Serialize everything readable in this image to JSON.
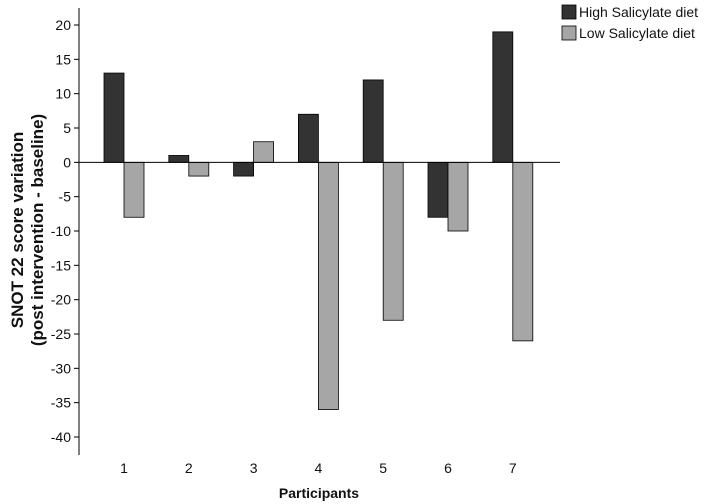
{
  "chart_data": {
    "type": "bar",
    "categories": [
      "1",
      "2",
      "3",
      "4",
      "5",
      "6",
      "7"
    ],
    "series": [
      {
        "name": "High Salicylate diet",
        "color": "#333333",
        "values": [
          13,
          1,
          -2,
          7,
          12,
          -8,
          19
        ]
      },
      {
        "name": "Low Salicylate diet",
        "color": "#a6a6a6",
        "values": [
          -8,
          -2,
          3,
          -36,
          -23,
          -10,
          -26
        ]
      }
    ],
    "xlabel": "Participants",
    "ylabel_lines": [
      "SNOT 22 score variation",
      "(post intervention - baseline)"
    ],
    "ylim": [
      -40,
      20
    ],
    "yticks": [
      20,
      15,
      10,
      5,
      0,
      -5,
      -10,
      -15,
      -20,
      -25,
      -30,
      -35,
      -40
    ],
    "grid": false,
    "legend_position": "top-right"
  }
}
